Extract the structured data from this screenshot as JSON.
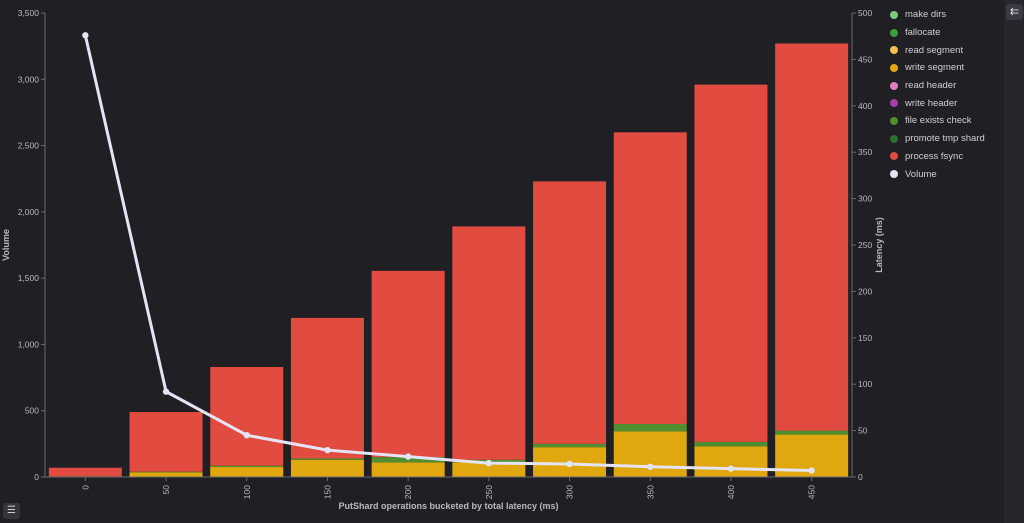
{
  "chart_data": {
    "type": "bar",
    "stacked": true,
    "xlabel": "PutShard operations bucketed by total latency (ms)",
    "ylabel": "Volume",
    "y2label": "Latency (ms)",
    "categories": [
      "0",
      "50",
      "100",
      "150",
      "200",
      "250",
      "300",
      "350",
      "400",
      "450"
    ],
    "ylim": [
      0,
      3500
    ],
    "yticks": [
      "0",
      "500",
      "1,000",
      "1,500",
      "2,000",
      "2,500",
      "3,000",
      "3,500"
    ],
    "y2lim": [
      0,
      500
    ],
    "y2ticks": [
      "0",
      "50",
      "100",
      "150",
      "200",
      "250",
      "300",
      "350",
      "400",
      "450",
      "500"
    ],
    "series": [
      {
        "name": "make dirs",
        "color": "#7fc97f",
        "values": [
          0,
          0,
          0,
          0,
          0,
          0,
          0,
          0,
          0,
          0
        ]
      },
      {
        "name": "fallocate",
        "color": "#3f9b3f",
        "values": [
          0,
          0,
          0,
          0,
          0,
          0,
          0,
          0,
          0,
          0
        ]
      },
      {
        "name": "read segment",
        "color": "#f2c14e",
        "values": [
          0,
          0,
          0,
          0,
          0,
          0,
          0,
          0,
          0,
          0
        ]
      },
      {
        "name": "write segment",
        "color": "#e0a80e",
        "values": [
          5,
          35,
          75,
          130,
          110,
          110,
          225,
          345,
          230,
          320
        ]
      },
      {
        "name": "read header",
        "color": "#e07fc0",
        "values": [
          0,
          0,
          0,
          0,
          0,
          0,
          0,
          0,
          0,
          0
        ]
      },
      {
        "name": "write header",
        "color": "#a23fa8",
        "values": [
          0,
          0,
          0,
          0,
          0,
          0,
          0,
          0,
          0,
          0
        ]
      },
      {
        "name": "file exists check",
        "color": "#4f8f2f",
        "values": [
          0,
          5,
          10,
          10,
          40,
          20,
          25,
          55,
          35,
          30
        ]
      },
      {
        "name": "promote tmp shard",
        "color": "#2e6e2e",
        "values": [
          0,
          0,
          0,
          0,
          0,
          0,
          0,
          0,
          0,
          0
        ]
      },
      {
        "name": "process fsync",
        "color": "#e24b40",
        "values": [
          65,
          450,
          745,
          1060,
          1405,
          1760,
          1980,
          2200,
          2695,
          2920
        ]
      }
    ],
    "line": {
      "name": "Volume",
      "color": "#e4e4f4",
      "axis": "right",
      "values": [
        476,
        92,
        45,
        29,
        22,
        15,
        14,
        11,
        9,
        7
      ]
    },
    "legend_position": "right",
    "grid": false
  },
  "controls": {
    "collapse_icon": "collapse-legend-icon",
    "collapse_glyph": "⇇",
    "list_icon": "list-icon",
    "list_glyph": "☰"
  }
}
